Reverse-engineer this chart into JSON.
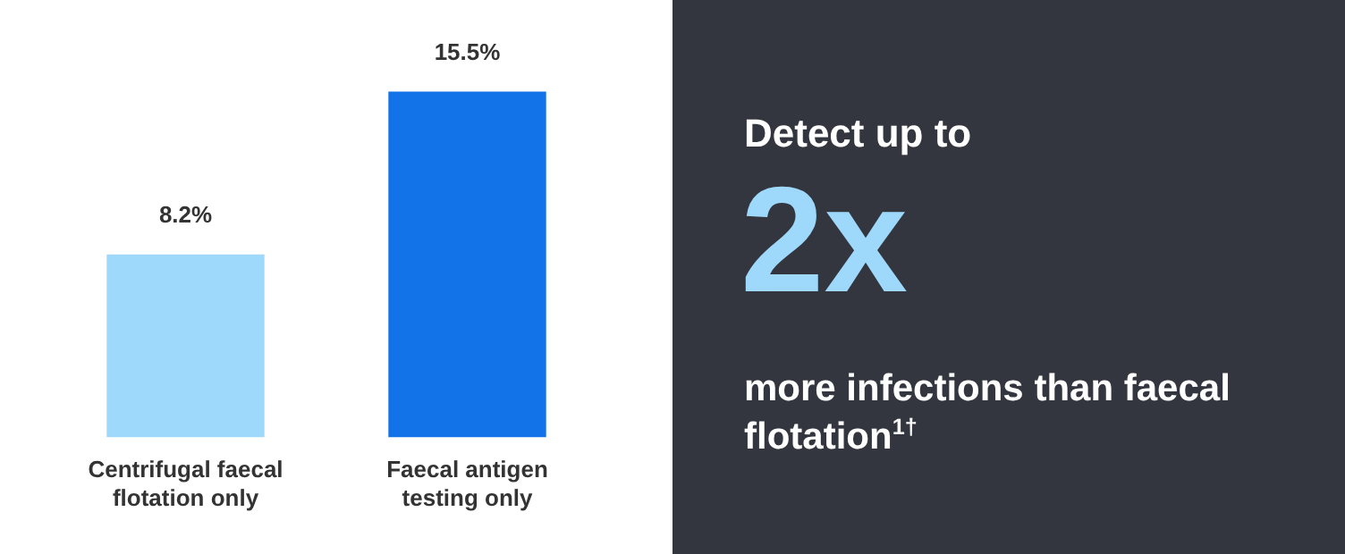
{
  "chart_data": {
    "type": "bar",
    "categories": [
      "Centrifugal faecal flotation only",
      "Faecal antigen testing only"
    ],
    "values": [
      8.2,
      15.5
    ],
    "colors": [
      "#9ed9fc",
      "#1273e8"
    ],
    "value_labels": [
      "8.2%",
      "15.5%"
    ],
    "grid": false,
    "legend": false,
    "annotations": [
      "Detect up to",
      "2x",
      "more infections than faecal flotation$^{1†}$"
    ]
  }
}
